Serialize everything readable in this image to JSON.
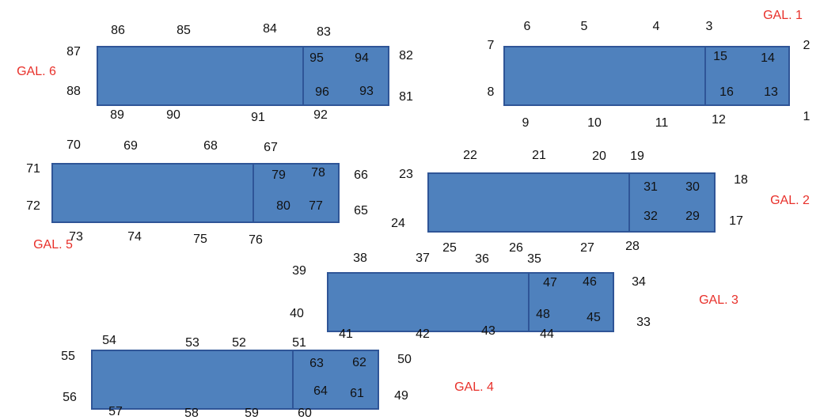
{
  "colors": {
    "block_fill": "#4f81bd",
    "block_border": "#2f5597",
    "gallery_label": "#e8302a",
    "number_text": "#111111"
  },
  "galleries": [
    {
      "name": "GAL. 1",
      "outer": [
        "1",
        "2",
        "3",
        "4",
        "5",
        "6",
        "7",
        "8",
        "9",
        "10",
        "11",
        "12"
      ],
      "inner": [
        "15",
        "14",
        "16",
        "13"
      ]
    },
    {
      "name": "GAL. 2",
      "outer": [
        "17",
        "18",
        "19",
        "20",
        "21",
        "22",
        "23",
        "24",
        "25",
        "26",
        "27",
        "28"
      ],
      "inner": [
        "31",
        "30",
        "32",
        "29"
      ]
    },
    {
      "name": "GAL. 3",
      "outer": [
        "33",
        "34",
        "35",
        "36",
        "37",
        "38",
        "39",
        "40",
        "41",
        "42",
        "43",
        "44"
      ],
      "inner": [
        "47",
        "46",
        "48",
        "45"
      ]
    },
    {
      "name": "GAL. 4",
      "outer": [
        "49",
        "50",
        "51",
        "52",
        "53",
        "54",
        "55",
        "56",
        "57",
        "58",
        "59",
        "60"
      ],
      "inner": [
        "63",
        "62",
        "64",
        "61"
      ]
    },
    {
      "name": "GAL. 5",
      "outer": [
        "65",
        "66",
        "67",
        "68",
        "69",
        "70",
        "71",
        "72",
        "73",
        "74",
        "75",
        "76"
      ],
      "inner": [
        "79",
        "78",
        "80",
        "77"
      ]
    },
    {
      "name": "GAL. 6",
      "outer": [
        "81",
        "82",
        "83",
        "84",
        "85",
        "86",
        "87",
        "88",
        "89",
        "90",
        "91",
        "92"
      ],
      "inner": [
        "95",
        "94",
        "96",
        "93"
      ]
    }
  ]
}
